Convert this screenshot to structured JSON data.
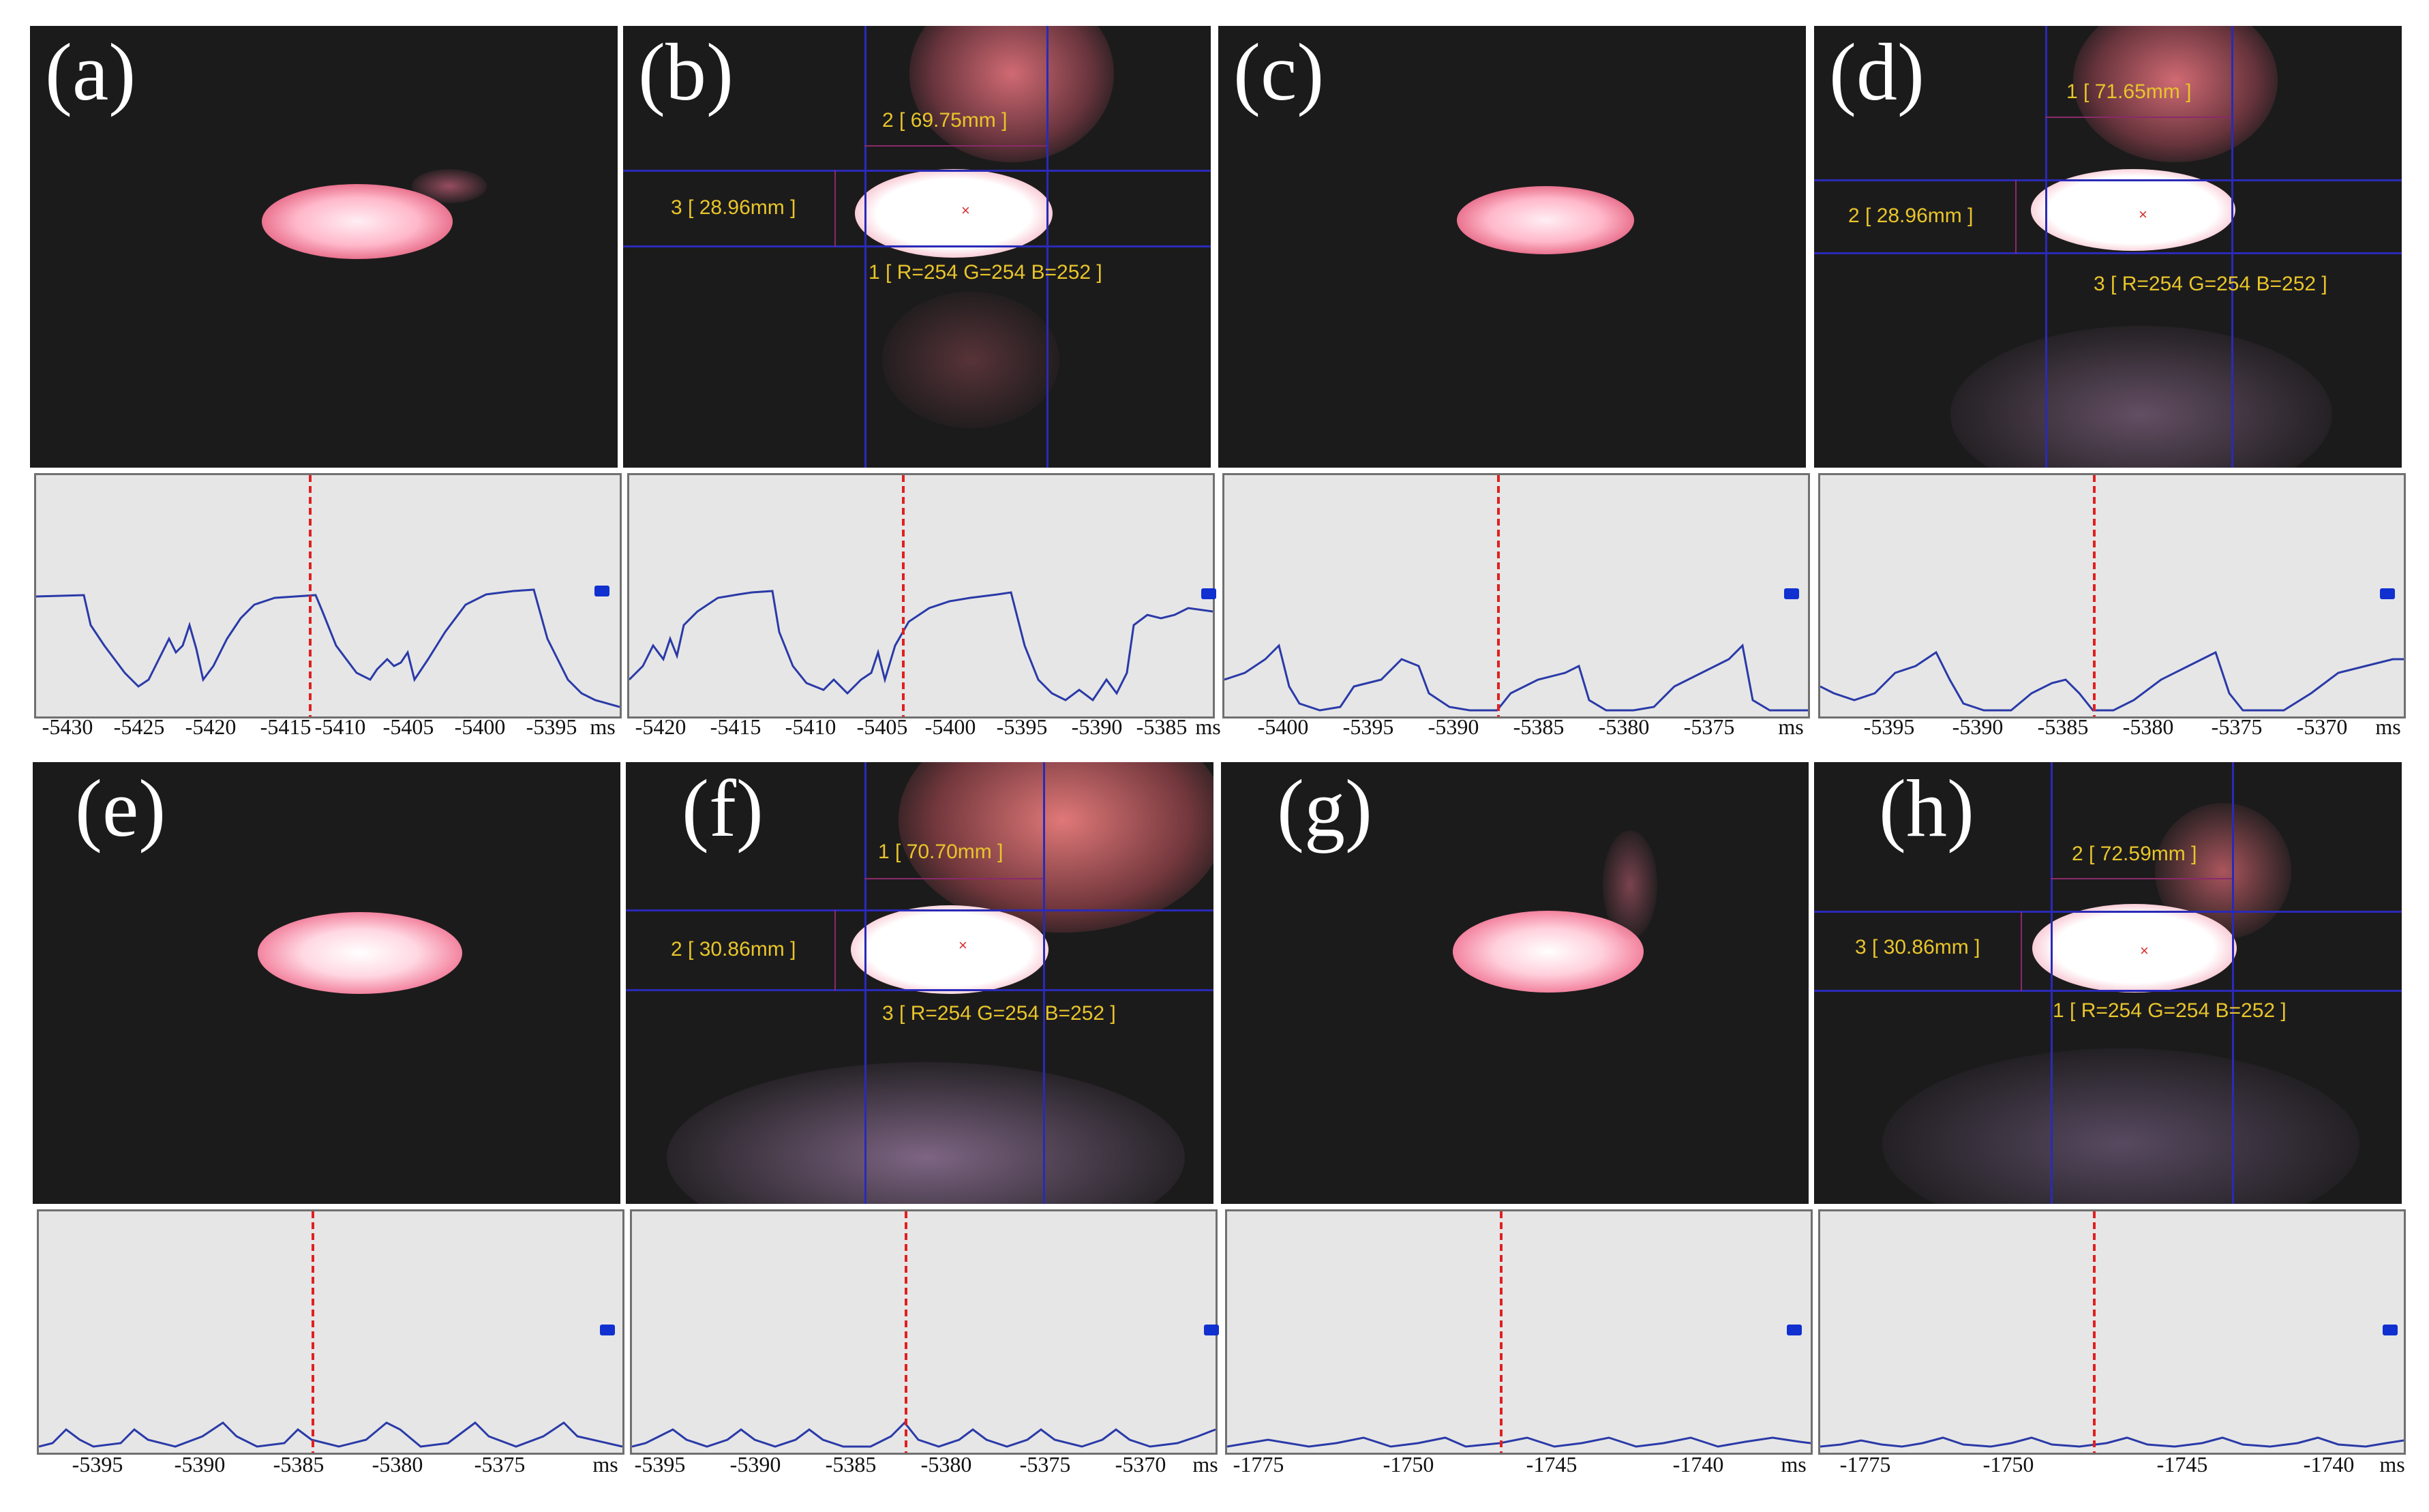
{
  "panels": [
    {
      "label": "(a)",
      "ticks": [
        "-5430",
        "-5425",
        "-5420",
        "-5415",
        "-5410",
        "-5405",
        "-5400",
        "-5395"
      ],
      "unit": "ms",
      "measurements": []
    },
    {
      "label": "(b)",
      "ticks": [
        "-5420",
        "-5415",
        "-5410",
        "-5405",
        "-5400",
        "-5395",
        "-5390",
        "-5385"
      ],
      "unit": "ms",
      "measurements": [
        "2 [ 69.75mm ]",
        "3 [ 28.96mm ]",
        "1 [ R=254 G=254 B=252 ]"
      ]
    },
    {
      "label": "(c)",
      "ticks": [
        "-5400",
        "-5395",
        "-5390",
        "-5385",
        "-5380",
        "-5375"
      ],
      "unit": "ms",
      "measurements": []
    },
    {
      "label": "(d)",
      "ticks": [
        "-5395",
        "-5390",
        "-5385",
        "-5380",
        "-5375",
        "-5370"
      ],
      "unit": "ms",
      "measurements": [
        "1 [ 71.65mm ]",
        "2 [ 28.96mm ]",
        "3 [ R=254 G=254 B=252 ]"
      ]
    },
    {
      "label": "(e)",
      "ticks": [
        "-5395",
        "-5390",
        "-5385",
        "-5380",
        "-5375"
      ],
      "unit": "ms",
      "measurements": []
    },
    {
      "label": "(f)",
      "ticks": [
        "-5395",
        "-5390",
        "-5385",
        "-5380",
        "-5375",
        "-5370"
      ],
      "unit": "ms",
      "measurements": [
        "1 [ 70.70mm ]",
        "2 [ 30.86mm ]",
        "3 [ R=254 G=254 B=252 ]"
      ]
    },
    {
      "label": "(g)",
      "ticks": [
        "-1775",
        "-1750",
        "-1745",
        "-1740"
      ],
      "unit": "ms",
      "measurements": []
    },
    {
      "label": "(h)",
      "ticks": [
        "-1775",
        "-1750",
        "-1745",
        "-1740"
      ],
      "unit": "ms",
      "measurements": [
        "2 [ 72.59mm ]",
        "3 [ 30.86mm ]",
        "1 [ R=254 G=254 B=252 ]"
      ]
    }
  ],
  "colors": {
    "photo_background": "#1c1b1c",
    "glow_core": "#ffffff",
    "glow_edge": "#f06a86",
    "crosshair": "#2a2ab8",
    "measurement_text": "#e8c52a",
    "graph_background": "#e6e6e6",
    "signal_line": "#2a3aa8",
    "marker_line": "#e02020"
  }
}
